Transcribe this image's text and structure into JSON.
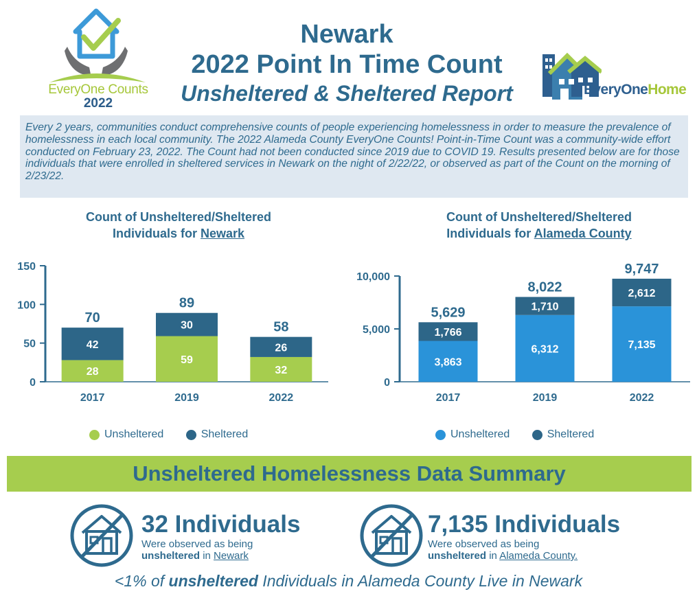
{
  "header": {
    "title_line1": "Newark",
    "title_line2": "2022 Point In Time Count",
    "title_line3": "Unsheltered & Sheltered Report",
    "left_logo": {
      "text1": "EveryOne Counts",
      "text2": "2022",
      "icon": "house-hands-check-logo"
    },
    "right_logo": {
      "text_a": "EveryOne",
      "text_b": "Home",
      "icon": "houses-logo"
    }
  },
  "intro": {
    "text": "Every 2 years, communities conduct comprehensive counts of people experiencing homelessness in order to measure the prevalence of homelessness in each local community.  The 2022 Alameda County EveryOne Counts! Point-in-Time Count was a community-wide effort conducted on February 23, 2022.  The Count had not been conducted since 2019 due to COVID 19. Results presented below are for those individuals that were enrolled in sheltered services in Newark on the night of 2/22/22, or observed as part of the Count on the morning of 2/23/22."
  },
  "colors": {
    "title_blue": "#2e6a8e",
    "sheltered": "#2d6688",
    "unsheltered_newark": "#a6cd4e",
    "unsheltered_alameda": "#2a93d9",
    "band_green": "#a6cd4e",
    "intro_bg": "#dfe8f1"
  },
  "chart_data": [
    {
      "type": "bar",
      "stacked": true,
      "title_pre": "Count of Unsheltered/Sheltered",
      "title_line2_pre": "Individuals for ",
      "title_place": "Newark",
      "categories": [
        "2017",
        "2019",
        "2022"
      ],
      "series": [
        {
          "name": "Unsheltered",
          "values": [
            28,
            59,
            32
          ],
          "color": "#a6cd4e"
        },
        {
          "name": "Sheltered",
          "values": [
            42,
            30,
            26
          ],
          "color": "#2d6688"
        }
      ],
      "totals": [
        70,
        89,
        58
      ],
      "segment_labels": {
        "Unsheltered": [
          "28",
          "59",
          "32"
        ],
        "Sheltered": [
          "42",
          "30",
          "26"
        ]
      },
      "total_labels": [
        "70",
        "89",
        "58"
      ],
      "ylim": [
        0,
        150
      ],
      "yticks": [
        0,
        50,
        100,
        150
      ],
      "ytick_labels": [
        "0",
        "50",
        "100",
        "150"
      ],
      "grid": false,
      "legend_position": "bottom"
    },
    {
      "type": "bar",
      "stacked": true,
      "title_pre": "Count of Unsheltered/Sheltered",
      "title_line2_pre": "Individuals for ",
      "title_place": "Alameda County",
      "categories": [
        "2017",
        "2019",
        "2022"
      ],
      "series": [
        {
          "name": "Unsheltered",
          "values": [
            3863,
            6312,
            7135
          ],
          "color": "#2a93d9"
        },
        {
          "name": "Sheltered",
          "values": [
            1766,
            1710,
            2612
          ],
          "color": "#2d6688"
        }
      ],
      "totals": [
        5629,
        8022,
        9747
      ],
      "segment_labels": {
        "Unsheltered": [
          "3,863",
          "6,312",
          "7,135"
        ],
        "Sheltered": [
          "1,766",
          "1,710",
          "2,612"
        ]
      },
      "total_labels": [
        "5,629",
        "8,022",
        "9,747"
      ],
      "ylim": [
        0,
        10000
      ],
      "yticks": [
        0,
        5000,
        10000
      ],
      "ytick_labels": [
        "0",
        "5,000",
        "10,000"
      ],
      "grid": false,
      "legend_position": "bottom"
    }
  ],
  "summary": {
    "band_title": "Unsheltered Homelessness Data Summary",
    "left": {
      "number": "32 Individuals",
      "desc_a": "Were observed as being",
      "desc_b_bold": "unsheltered",
      "desc_b_in": " in ",
      "place": "Newark",
      "icon": "crossed-house-icon"
    },
    "right": {
      "number": "7,135 Individuals",
      "desc_a": "Were observed as being",
      "desc_b_bold": "unsheltered",
      "desc_b_in": " in ",
      "place": "Alameda County.",
      "icon": "crossed-house-icon"
    }
  },
  "footnote": {
    "pre": "<1% of ",
    "bold": "unsheltered",
    "post": " Individuals in Alameda County Live in Newark"
  }
}
